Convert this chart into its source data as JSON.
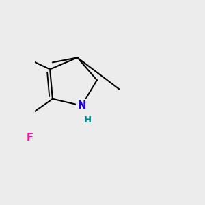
{
  "background_color": "#ececec",
  "bond_color": "#000000",
  "N_color": "#2200ee",
  "H_color": "#008888",
  "F_color": "#ee1199",
  "bond_lw": 1.5,
  "figsize": [
    3.0,
    3.0
  ],
  "dpi": 100,
  "xlim": [
    -0.5,
    4.2
  ],
  "ylim": [
    -3.8,
    1.5
  ]
}
